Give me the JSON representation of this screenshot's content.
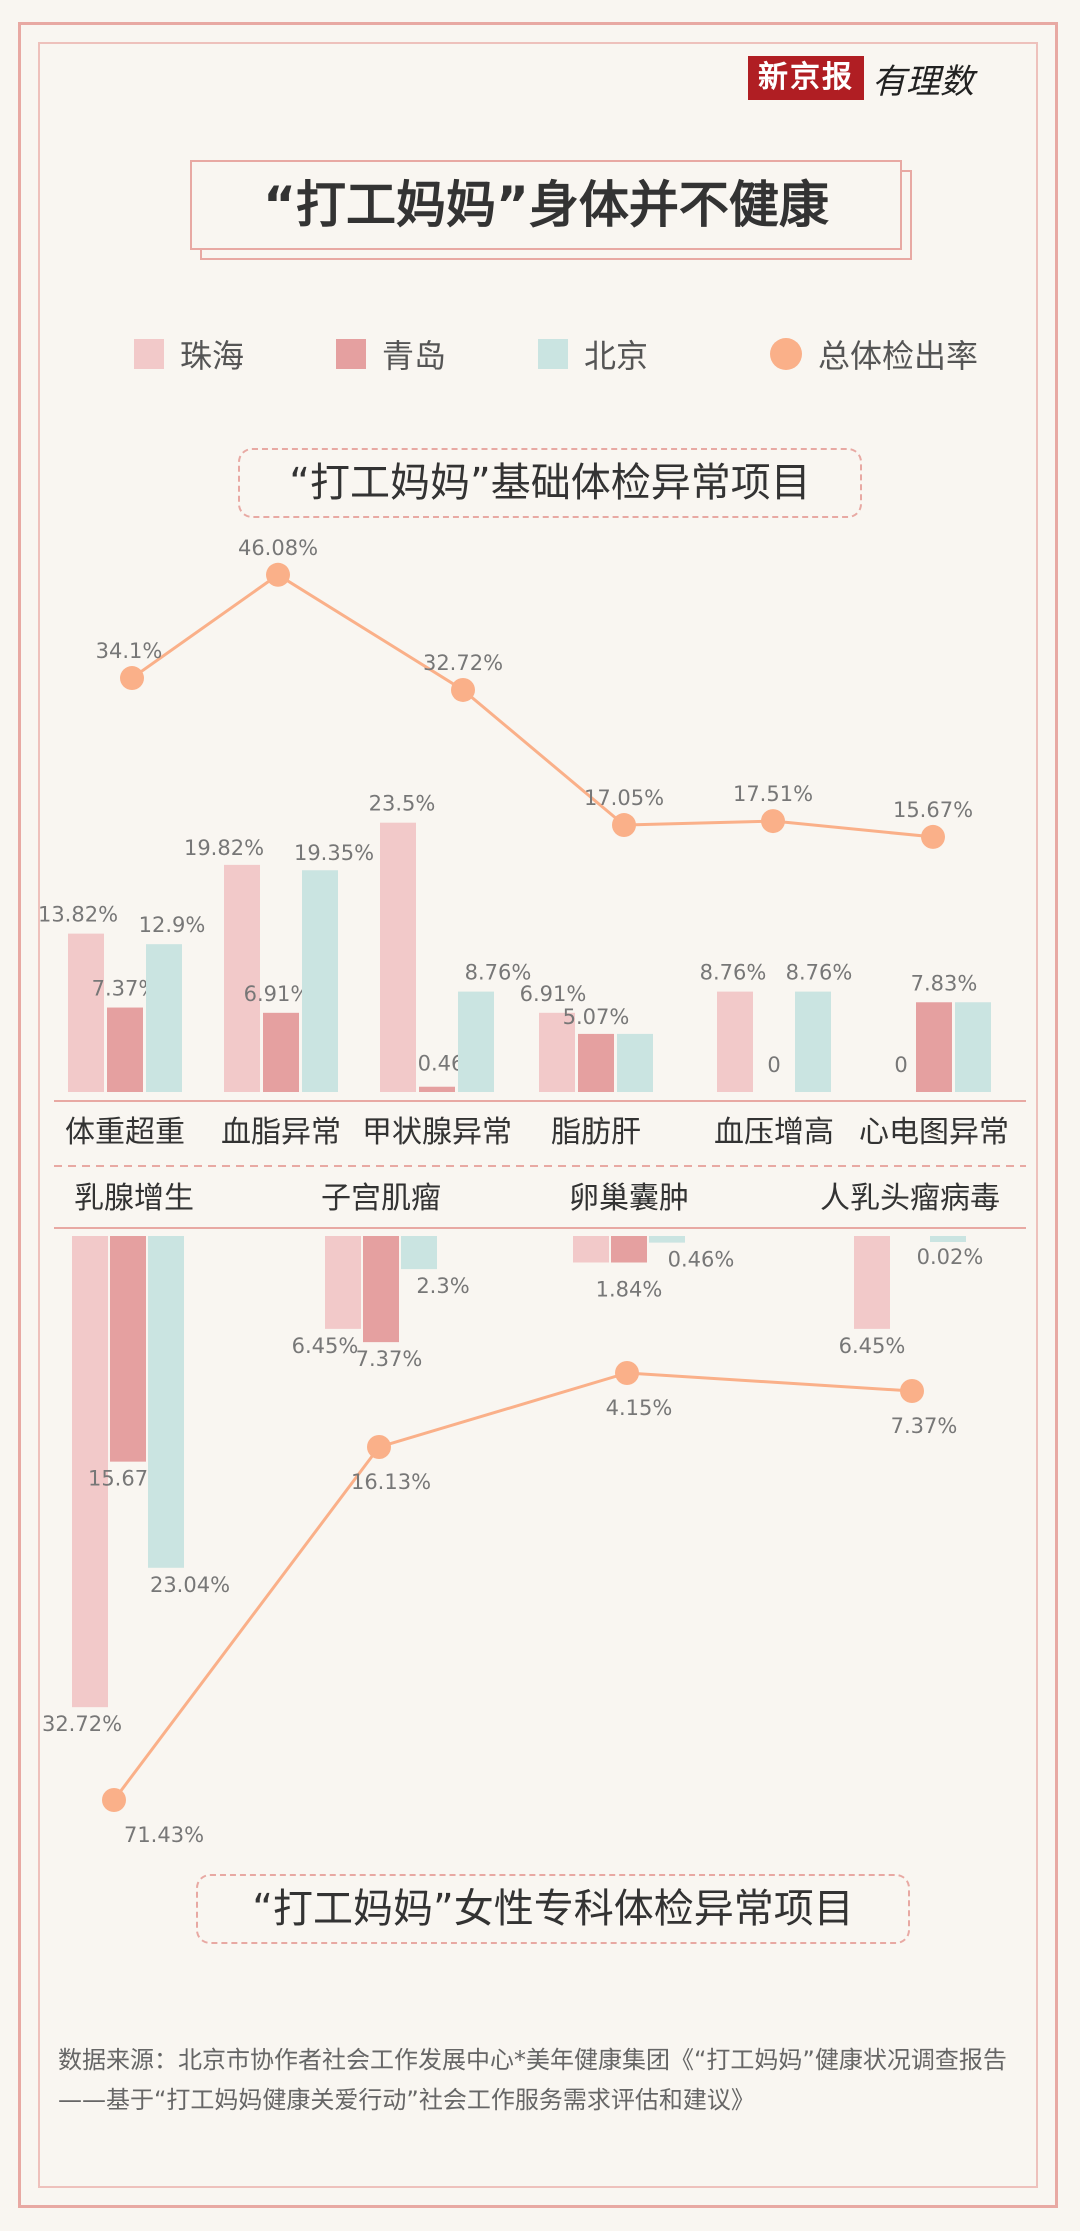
{
  "brand": {
    "name": "新京报",
    "sub": "有理数"
  },
  "title": "“打工妈妈”身体并不健康",
  "legend": [
    {
      "label": "珠海",
      "color": "#f2c9c9"
    },
    {
      "label": "青岛",
      "color": "#e5a0a0"
    },
    {
      "label": "北京",
      "color": "#cae4e1"
    },
    {
      "label": "总体检出率",
      "color": "#fab089"
    }
  ],
  "colors": {
    "zhuhai": "#f2c9c9",
    "qingdao": "#e5a0a0",
    "beijing": "#cae4e1",
    "overall": "#fab089"
  },
  "chart_data": [
    {
      "type": "bar",
      "title": "“打工妈妈”基础体检异常项目",
      "categories": [
        "体重超重",
        "血脂异常",
        "甲状腺异常",
        "脂肪肝",
        "血压增高",
        "心电图异常"
      ],
      "series": [
        {
          "name": "珠海",
          "values": [
            13.82,
            19.82,
            23.5,
            6.91,
            8.76,
            0
          ],
          "labels": [
            "13.82%",
            "19.82%",
            "23.5%",
            "6.91%",
            "8.76%",
            "0"
          ]
        },
        {
          "name": "青岛",
          "values": [
            7.37,
            6.91,
            0.46,
            5.07,
            0,
            7.83
          ],
          "labels": [
            "7.37%",
            "6.91%",
            "0.46%",
            "5.07%",
            "0",
            "7.83%"
          ]
        },
        {
          "name": "北京",
          "values": [
            12.9,
            19.35,
            8.76,
            5.07,
            8.76,
            7.83
          ],
          "labels": [
            "12.9%",
            "19.35%",
            "8.76%",
            "",
            "8.76%",
            ""
          ]
        },
        {
          "name": "总体检出率",
          "type": "line",
          "values": [
            34.1,
            46.08,
            32.72,
            17.05,
            17.51,
            15.67
          ],
          "labels": [
            "34.1%",
            "46.08%",
            "32.72%",
            "17.05%",
            "17.51%",
            "15.67%"
          ]
        }
      ]
    },
    {
      "type": "bar",
      "title": "“打工妈妈”女性专科体检异常项目",
      "categories": [
        "乳腺增生",
        "子宫肌瘤",
        "卵巢囊肿",
        "人乳头瘤病毒"
      ],
      "series": [
        {
          "name": "珠海",
          "values": [
            32.72,
            6.45,
            1.84,
            6.45
          ],
          "labels": [
            "32.72%",
            "6.45%",
            "",
            "6.45%"
          ]
        },
        {
          "name": "青岛",
          "values": [
            15.67,
            7.37,
            1.84,
            null
          ],
          "labels": [
            "15.67%",
            "7.37%",
            "1.84%",
            ""
          ]
        },
        {
          "name": "北京",
          "values": [
            23.04,
            2.3,
            0.46,
            0.02
          ],
          "labels": [
            "23.04%",
            "2.3%",
            "0.46%",
            "0.02%"
          ]
        },
        {
          "name": "总体检出率",
          "type": "line",
          "values": [
            71.43,
            16.13,
            4.15,
            7.37
          ],
          "labels": [
            "71.43%",
            "16.13%",
            "4.15%",
            "7.37%"
          ]
        }
      ]
    }
  ],
  "source": "数据来源：北京市协作者社会工作发展中心*美年健康集团《“打工妈妈”健康状况调查报告——基于“打工妈妈健康关爱行动”社会工作服务需求评估和建议》"
}
